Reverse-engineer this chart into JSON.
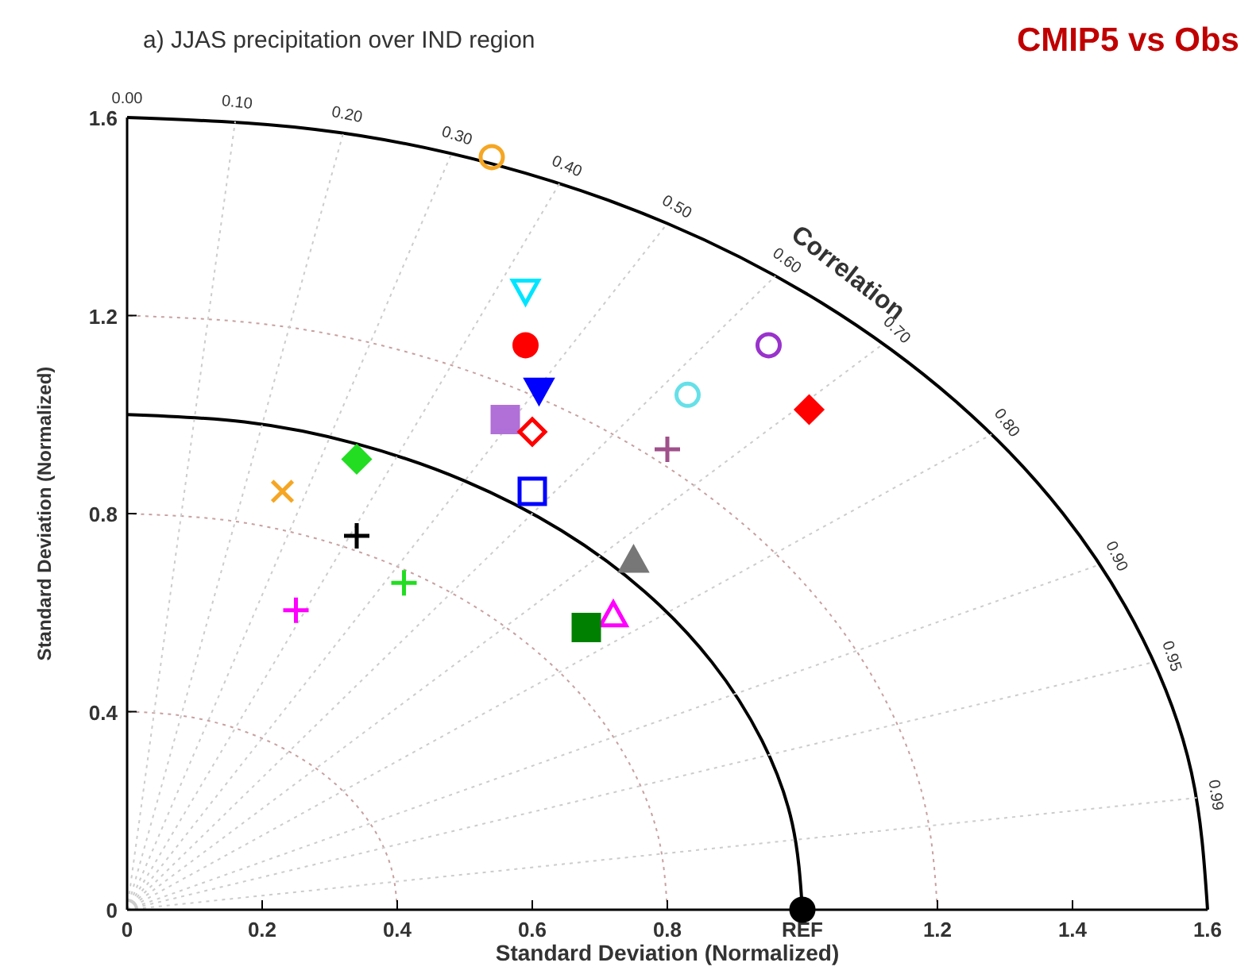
{
  "chart_data": {
    "type": "scatter",
    "title": "a) JJAS precipitation over IND region",
    "subtitle": "CMIP5 vs Obs",
    "xlabel": "Standard Deviation (Normalized)",
    "ylabel": "Standard Deviation (Normalized)",
    "xlim": [
      0,
      1.6
    ],
    "ylim": [
      0,
      1.6
    ],
    "xticks": [
      0,
      0.2,
      0.4,
      0.6,
      0.8,
      {
        "value": 1,
        "label": "REF"
      },
      1.2,
      1.4,
      1.6
    ],
    "yticks": [
      0,
      0.4,
      0.8,
      1.2,
      1.6
    ],
    "annotations": [
      "Correlation",
      {
        "text": "0.00",
        "x": 0,
        "y": 1.6
      },
      {
        "text": "0.10",
        "x": 0.16,
        "y": 1.592
      },
      {
        "text": "0.20",
        "x": 0.32,
        "y": 1.568
      },
      {
        "text": "0.30",
        "x": 0.48,
        "y": 1.526
      },
      {
        "text": "0.40",
        "x": 0.64,
        "y": 1.466
      },
      {
        "text": "0.50",
        "x": 0.8,
        "y": 1.386
      },
      {
        "text": "0.60",
        "x": 0.96,
        "y": 1.28
      },
      {
        "text": "0.70",
        "x": 1.12,
        "y": 1.143
      },
      {
        "text": "0.80",
        "x": 1.28,
        "y": 0.96
      },
      {
        "text": "0.90",
        "x": 1.44,
        "y": 0.697
      },
      {
        "text": "0.95",
        "x": 1.52,
        "y": 0.5
      },
      {
        "text": "0.99",
        "x": 1.584,
        "y": 0.226
      }
    ],
    "series": [
      {
        "type": "line",
        "line_style": "dotted",
        "color": "#c8a0a0",
        "x": [
          0.4,
          0.394,
          0.376,
          0.346,
          0.306,
          0.257,
          0.2,
          0.137,
          0.069,
          0
        ],
        "values": [
          0,
          0.069,
          0.137,
          0.2,
          0.257,
          0.306,
          0.346,
          0.376,
          0.394,
          0.4
        ]
      },
      {
        "type": "line",
        "line_style": "dotted",
        "color": "#c8a0a0",
        "x": [
          0.8,
          0.788,
          0.752,
          0.693,
          0.613,
          0.514,
          0.4,
          0.274,
          0.139,
          0
        ],
        "values": [
          0,
          0.139,
          0.274,
          0.4,
          0.514,
          0.613,
          0.693,
          0.752,
          0.788,
          0.8
        ]
      },
      {
        "type": "line",
        "line_style": "dotted",
        "color": "#c8a0a0",
        "x": [
          1.2,
          1.182,
          1.128,
          1.039,
          0.919,
          0.771,
          0.6,
          0.41,
          0.208,
          0
        ],
        "values": [
          0,
          0.208,
          0.41,
          0.6,
          0.771,
          0.919,
          1.039,
          1.128,
          1.182,
          1.2
        ]
      },
      {
        "type": "line",
        "line_style": "solid",
        "color": "#000000",
        "x": [
          1,
          0.985,
          0.94,
          0.866,
          0.766,
          0.643,
          0.5,
          0.342,
          0.174,
          0
        ],
        "values": [
          0,
          0.174,
          0.342,
          0.5,
          0.643,
          0.766,
          0.866,
          0.94,
          0.985,
          1
        ]
      },
      {
        "type": "line",
        "line_style": "solid",
        "color": "#000000",
        "x": [
          1.6,
          1.576,
          1.504,
          1.386,
          1.226,
          1.028,
          0.8,
          0.547,
          0.278,
          0
        ],
        "values": [
          0,
          0.278,
          0.547,
          0.8,
          1.028,
          1.226,
          1.386,
          1.504,
          1.576,
          1.6
        ]
      },
      {
        "type": "line",
        "line_style": "dotted",
        "color": "#cccccc",
        "x": [
          0,
          0.16
        ],
        "values": [
          0,
          1.592
        ]
      },
      {
        "type": "line",
        "line_style": "dotted",
        "color": "#cccccc",
        "x": [
          0,
          0.32
        ],
        "values": [
          0,
          1.568
        ]
      },
      {
        "type": "line",
        "line_style": "dotted",
        "color": "#cccccc",
        "x": [
          0,
          0.48
        ],
        "values": [
          0,
          1.526
        ]
      },
      {
        "type": "line",
        "line_style": "dotted",
        "color": "#cccccc",
        "x": [
          0,
          0.64
        ],
        "values": [
          0,
          1.466
        ]
      },
      {
        "type": "line",
        "line_style": "dotted",
        "color": "#cccccc",
        "x": [
          0,
          0.8
        ],
        "values": [
          0,
          1.386
        ]
      },
      {
        "type": "line",
        "line_style": "dotted",
        "color": "#cccccc",
        "x": [
          0,
          0.96
        ],
        "values": [
          0,
          1.28
        ]
      },
      {
        "type": "line",
        "line_style": "dotted",
        "color": "#cccccc",
        "x": [
          0,
          1.12
        ],
        "values": [
          0,
          1.143
        ]
      },
      {
        "type": "line",
        "line_style": "dotted",
        "color": "#cccccc",
        "x": [
          0,
          1.28
        ],
        "values": [
          0,
          0.96
        ]
      },
      {
        "type": "line",
        "line_style": "dotted",
        "color": "#cccccc",
        "x": [
          0,
          1.44
        ],
        "values": [
          0,
          0.697
        ]
      },
      {
        "type": "line",
        "line_style": "dotted",
        "color": "#cccccc",
        "x": [
          0,
          1.52
        ],
        "values": [
          0,
          0.5
        ]
      },
      {
        "type": "line",
        "line_style": "dotted",
        "color": "#cccccc",
        "x": [
          0,
          1.584
        ],
        "values": [
          0,
          0.226
        ]
      },
      {
        "x": [
          0.54
        ],
        "values": [
          1.52
        ],
        "color": "#f5a623",
        "marker": "circle-open"
      },
      {
        "x": [
          0.59
        ],
        "values": [
          1.25
        ],
        "color": "#00e5ff",
        "marker": "triangle-down-open"
      },
      {
        "x": [
          0.59
        ],
        "values": [
          1.14
        ],
        "color": "#ff0000",
        "marker": "circle"
      },
      {
        "x": [
          0.95
        ],
        "values": [
          1.14
        ],
        "color": "#9933cc",
        "marker": "circle-open"
      },
      {
        "x": [
          1.01
        ],
        "values": [
          1.01
        ],
        "color": "#ff0000",
        "marker": "diamond"
      },
      {
        "x": [
          0.61
        ],
        "values": [
          1.05
        ],
        "color": "#0000ff",
        "marker": "triangle-down"
      },
      {
        "x": [
          0.83
        ],
        "values": [
          1.04
        ],
        "color": "#66e0e8",
        "marker": "circle-open"
      },
      {
        "x": [
          0.56
        ],
        "values": [
          0.99
        ],
        "color": "#b070d8",
        "marker": "square"
      },
      {
        "x": [
          0.6
        ],
        "values": [
          0.965
        ],
        "color": "#ff0000",
        "marker": "diamond-open"
      },
      {
        "x": [
          0.8
        ],
        "values": [
          0.93
        ],
        "color": "#a0508a",
        "marker": "cross"
      },
      {
        "x": [
          0.34
        ],
        "values": [
          0.91
        ],
        "color": "#22dd22",
        "marker": "diamond"
      },
      {
        "x": [
          0.23
        ],
        "values": [
          0.845
        ],
        "color": "#f5a623",
        "marker": "x"
      },
      {
        "x": [
          0.6
        ],
        "values": [
          0.845
        ],
        "color": "#0000ff",
        "marker": "square-open"
      },
      {
        "x": [
          0.34
        ],
        "values": [
          0.755
        ],
        "color": "#000000",
        "marker": "cross"
      },
      {
        "x": [
          0.75
        ],
        "values": [
          0.705
        ],
        "color": "#777777",
        "marker": "triangle"
      },
      {
        "x": [
          0.41
        ],
        "values": [
          0.66
        ],
        "color": "#22dd22",
        "marker": "cross"
      },
      {
        "x": [
          0.25
        ],
        "values": [
          0.605
        ],
        "color": "#ff00ff",
        "marker": "cross"
      },
      {
        "x": [
          0.72
        ],
        "values": [
          0.595
        ],
        "color": "#ff00ff",
        "marker": "triangle-open"
      },
      {
        "x": [
          0.68
        ],
        "values": [
          0.57
        ],
        "color": "#008000",
        "marker": "square"
      },
      {
        "x": [
          1
        ],
        "values": [
          0
        ],
        "color": "#000000",
        "marker": "circle"
      }
    ]
  }
}
